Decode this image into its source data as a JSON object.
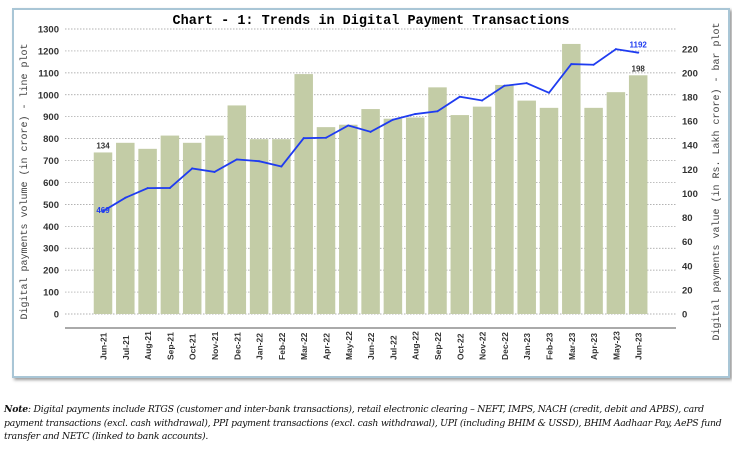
{
  "chart_data": {
    "type": "bar+line",
    "title": "Chart - 1: Trends in Digital Payment Transactions",
    "categories": [
      "Jun-21",
      "Jul-21",
      "Aug-21",
      "Sep-21",
      "Oct-21",
      "Nov-21",
      "Dec-21",
      "Jan-22",
      "Feb-22",
      "Mar-22",
      "Apr-22",
      "May-22",
      "Jun-22",
      "Jul-22",
      "Aug-22",
      "Sep-22",
      "Oct-22",
      "Nov-22",
      "Dec-22",
      "Jan-23",
      "Feb-23",
      "Mar-23",
      "Apr-23",
      "May-23",
      "Jun-23"
    ],
    "bar_series": {
      "axis": "right",
      "color": "#c3cca6",
      "values": [
        134,
        142,
        137,
        148,
        142,
        148,
        173,
        145,
        145,
        199,
        155,
        157,
        170,
        162,
        163,
        188,
        165,
        172,
        190,
        177,
        171,
        224,
        171,
        184,
        198
      ],
      "data_labels": {
        "0": "134",
        "24": "198"
      }
    },
    "line_series": {
      "axis": "left",
      "color": "#1f3cf0",
      "values": [
        469,
        530,
        574,
        575,
        664,
        648,
        705,
        697,
        673,
        802,
        804,
        860,
        831,
        886,
        912,
        925,
        991,
        974,
        1041,
        1053,
        1009,
        1140,
        1137,
        1208,
        1192
      ],
      "data_labels": {
        "0": "469",
        "24": "1192"
      }
    },
    "ylabel_left": "Digital payments volume (in crore) - line plot",
    "ylabel_right": "Digital payments value (in Rs. Lakh crore) - bar plot",
    "ylim_left": [
      0,
      1300
    ],
    "yticks_left": [
      0,
      100,
      200,
      300,
      400,
      500,
      600,
      700,
      800,
      900,
      1000,
      1100,
      1200,
      1300
    ],
    "ylim_right": [
      0,
      236.4
    ],
    "yticks_right": [
      0,
      20,
      40,
      60,
      80,
      100,
      120,
      140,
      160,
      180,
      200,
      220
    ],
    "grid": true,
    "legend": "none"
  },
  "note": {
    "label": "Note",
    "text": ": Digital payments include RTGS (customer and inter-bank transactions), retail electronic clearing – NEFT, IMPS, NACH (credit, debit and APBS), card payment transactions (excl. cash withdrawal), PPI payment transactions (excl. cash withdrawal), UPI (including BHIM & USSD), BHIM Aadhaar Pay, AePS fund transfer and NETC (linked to bank accounts)."
  }
}
